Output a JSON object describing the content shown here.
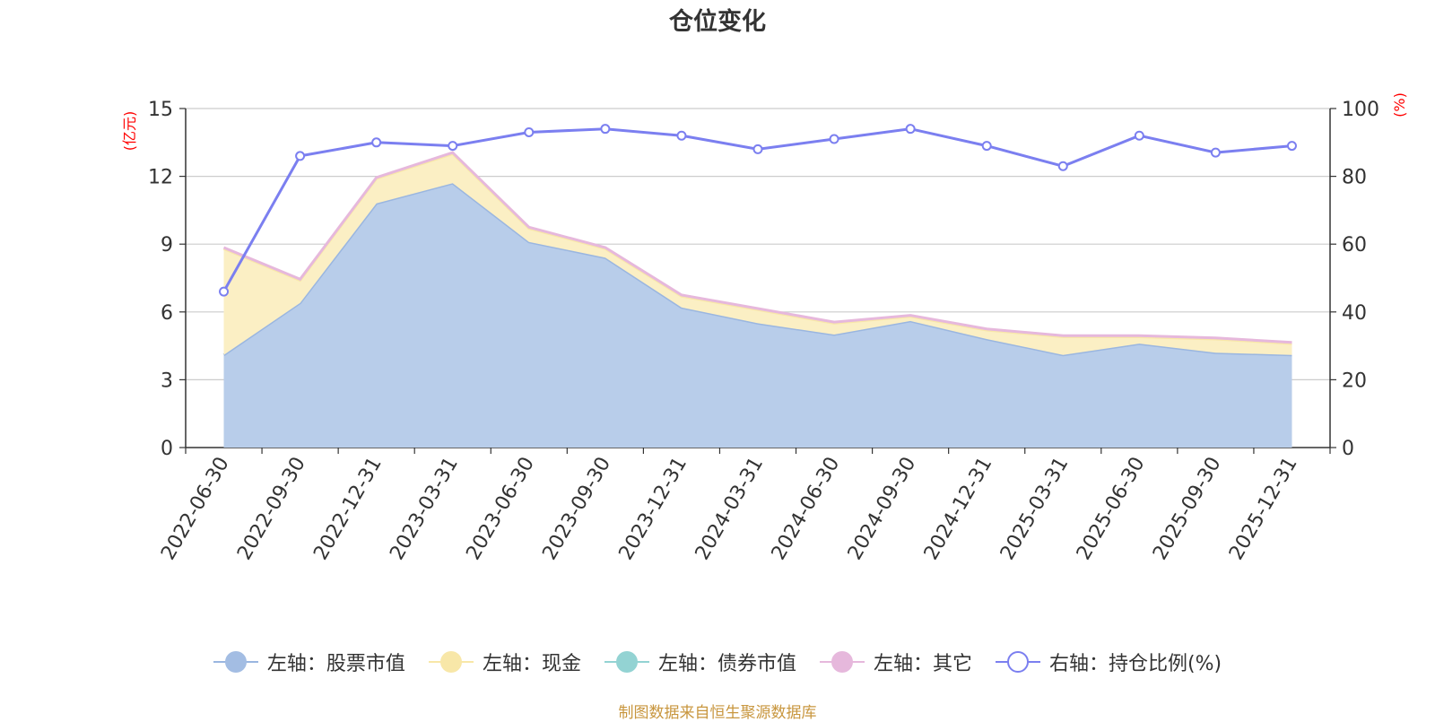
{
  "chart_data": {
    "type": "area",
    "title": "仓位变化",
    "source": "制图数据来自恒生聚源数据库",
    "left_axis": {
      "unit_label": "(亿元)",
      "ylim": [
        0,
        15
      ],
      "ticks": [
        0,
        3,
        6,
        9,
        12,
        15
      ]
    },
    "right_axis": {
      "unit_label": "(%)",
      "ylim": [
        0,
        100
      ],
      "ticks": [
        0,
        20,
        40,
        60,
        80,
        100
      ]
    },
    "categories": [
      "2022-06-30",
      "2022-09-30",
      "2022-12-31",
      "2023-03-31",
      "2023-06-30",
      "2023-09-30",
      "2023-12-31",
      "2024-03-31",
      "2024-06-30",
      "2024-09-30",
      "2024-12-31",
      "2025-03-31",
      "2025-06-30",
      "2025-09-30",
      "2025-12-31"
    ],
    "series": [
      {
        "name": "左轴：股票市值",
        "axis": "left",
        "stack": true,
        "color": "#a3bde3",
        "fill": "#b8cdea",
        "line": "#9ab6e0",
        "values": [
          4.1,
          6.4,
          10.8,
          11.7,
          9.1,
          8.4,
          6.2,
          5.5,
          5.0,
          5.6,
          4.8,
          4.1,
          4.6,
          4.2,
          4.1
        ]
      },
      {
        "name": "左轴：现金",
        "axis": "left",
        "stack": true,
        "color": "#f8e7a8",
        "fill": "#fbefc4",
        "line": "#f8e7a8",
        "values": [
          4.7,
          1.0,
          1.1,
          1.3,
          0.6,
          0.4,
          0.5,
          0.6,
          0.5,
          0.2,
          0.4,
          0.8,
          0.3,
          0.6,
          0.5
        ]
      },
      {
        "name": "左轴：债券市值",
        "axis": "left",
        "stack": true,
        "color": "#93d3d3",
        "fill": "#93d3d3",
        "line": "#93d3d3",
        "values": [
          0,
          0,
          0,
          0,
          0,
          0,
          0,
          0,
          0,
          0,
          0,
          0,
          0,
          0,
          0
        ]
      },
      {
        "name": "左轴：其它",
        "axis": "left",
        "stack": true,
        "color": "#e6b8dc",
        "fill": "#e6b8dc",
        "line": "#e6b8dc",
        "values": [
          0.05,
          0.05,
          0.05,
          0.05,
          0.05,
          0.05,
          0.05,
          0.05,
          0.05,
          0.05,
          0.05,
          0.05,
          0.05,
          0.05,
          0.05
        ]
      },
      {
        "name": "右轴：持仓比例(%)",
        "axis": "right",
        "stack": false,
        "color": "#7b7ff0",
        "line": "#7b7ff0",
        "values": [
          46,
          86,
          90,
          89,
          93,
          94,
          92,
          88,
          91,
          94,
          89,
          83,
          92,
          87,
          89
        ]
      }
    ]
  }
}
